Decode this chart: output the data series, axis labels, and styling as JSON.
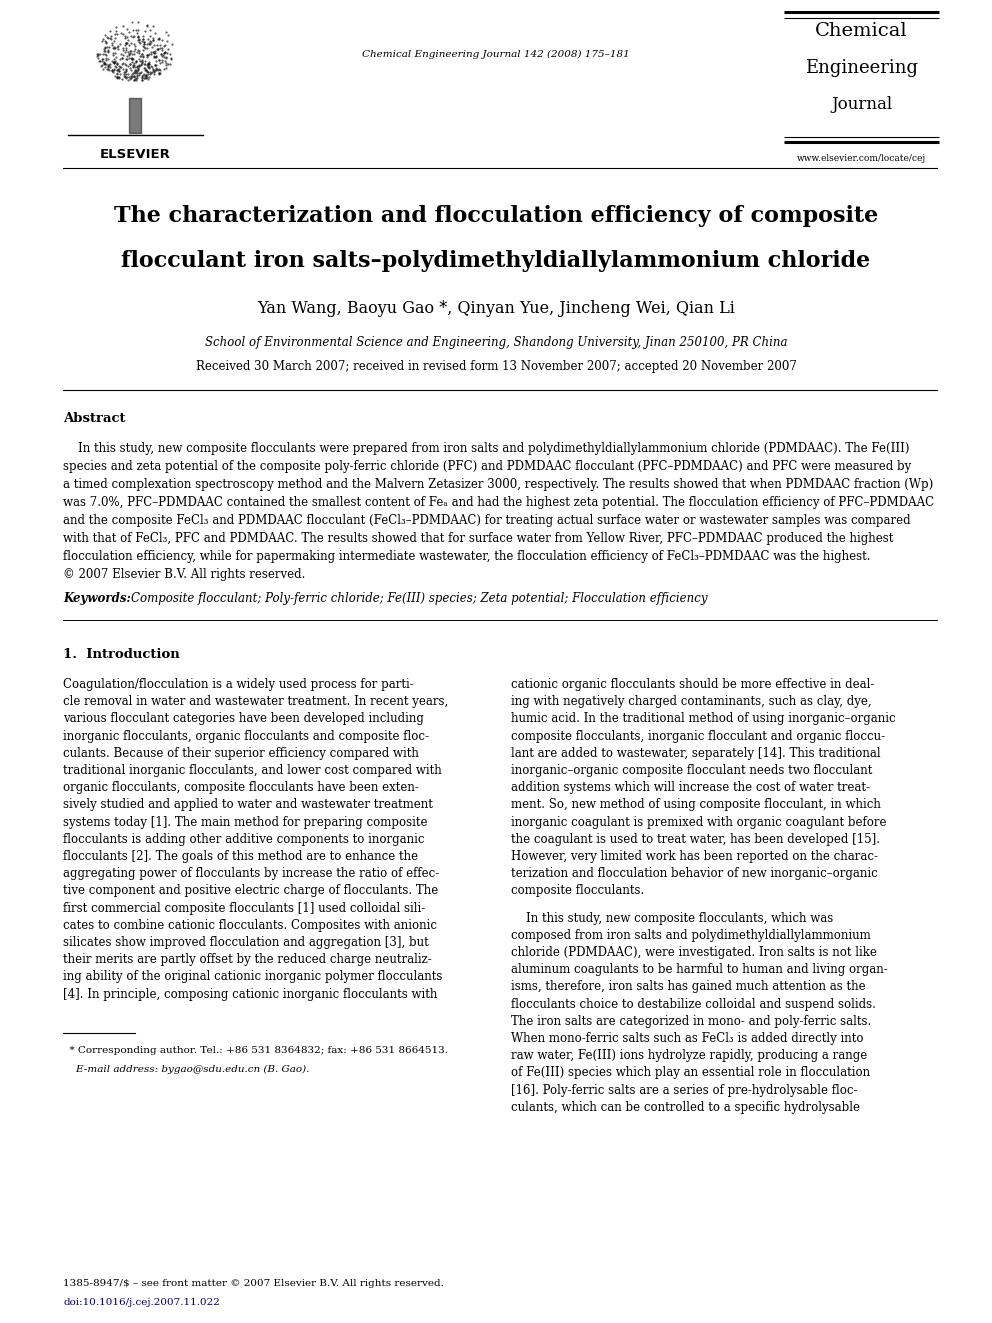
{
  "bg_color": "#ffffff",
  "page_width": 9.92,
  "page_height": 13.23,
  "dpi": 100,
  "journal_name_lines": [
    "Chemical",
    "Engineering",
    "Journal"
  ],
  "journal_url": "www.elsevier.com/locate/cej",
  "journal_ref": "Chemical Engineering Journal 142 (2008) 175–181",
  "title_line1": "The characterization and flocculation efficiency of composite",
  "title_line2": "flocculant iron salts–polydimethyldiallylammonium chloride",
  "authors": "Yan Wang, Baoyu Gao *, Qinyan Yue, Jincheng Wei, Qian Li",
  "affiliation": "School of Environmental Science and Engineering, Shandong University, Jinan 250100, PR China",
  "received": "Received 30 March 2007; received in revised form 13 November 2007; accepted 20 November 2007",
  "abstract_title": "Abstract",
  "abstract_text": "In this study, new composite flocculants were prepared from iron salts and polydimethyldiallylammonium chloride (PDMDAAC). The Fe(III) species and zeta potential of the composite poly-ferric chloride (PFC) and PDMDAAC flocculant (PFC–PDMDAAC) and PFC were measured by a timed complexation spectroscopy method and the Malvern Zetasizer 3000, respectively. The results showed that when PDMDAAC fraction (Wp) was 7.0%, PFC–PDMDAAC contained the smallest content of Feₐ and had the highest zeta potential. The flocculation efficiency of PFC–PDMDAAC and the composite FeCl₃ and PDMDAAC flocculant (FeCl₃–PDMDAAC) for treating actual surface water or wastewater samples was compared with that of FeCl₃, PFC and PDMDAAC. The results showed that for surface water from Yellow River, PFC–PDMDAAC produced the highest flocculation efficiency, while for papermaking intermediate wastewater, the flocculation efficiency of FeCl₃–PDMDAAC was the highest.\n© 2007 Elsevier B.V. All rights reserved.",
  "keywords_label": "Keywords:",
  "keywords_text": "  Composite flocculant; Poly-ferric chloride; Fe(III) species; Zeta potential; Flocculation efficiency",
  "section1_title": "1.  Introduction",
  "intro_col1_para1": "Coagulation/flocculation is a widely used process for parti-\ncle removal in water and wastewater treatment. In recent years,\nvarious flocculant categories have been developed including\ninorganic flocculants, organic flocculants and composite floc-\nculants. Because of their superior efficiency compared with\ntraditional inorganic flocculants, and lower cost compared with\norganic flocculants, composite flocculants have been exten-\nsively studied and applied to water and wastewater treatment\nsystems today [1]. The main method for preparing composite\nflocculants is adding other additive components to inorganic\nflocculants [2]. The goals of this method are to enhance the\naggregating power of flocculants by increase the ratio of effec-\ntive component and positive electric charge of flocculants. The\nfirst commercial composite flocculants [1] used colloidal sili-\ncates to combine cationic flocculants. Composites with anionic\nsilicates show improved flocculation and aggregation [3], but\ntheir merits are partly offset by the reduced charge neutraliz-\ning ability of the original cationic inorganic polymer flocculants\n[4]. In principle, composing cationic inorganic flocculants with",
  "intro_col2_para1": "cationic organic flocculants should be more effective in deal-\ning with negatively charged contaminants, such as clay, dye,\nhumic acid. In the traditional method of using inorganic–organic\ncomposite flocculants, inorganic flocculant and organic floccu-\nlant are added to wastewater, separately [14]. This traditional\ninorganic–organic composite flocculant needs two flocculant\naddition systems which will increase the cost of water treat-\nment. So, new method of using composite flocculant, in which\ninorganic coagulant is premixed with organic coagulant before\nthe coagulant is used to treat water, has been developed [15].\nHowever, very limited work has been reported on the charac-\nterization and flocculation behavior of new inorganic–organic\ncomposite flocculants.",
  "intro_col2_para2": "    In this study, new composite flocculants, which was\ncomposed from iron salts and polydimethyldiallylammonium\nchloride (PDMDAAC), were investigated. Iron salts is not like\naluminum coagulants to be harmful to human and living organ-\nisms, therefore, iron salts has gained much attention as the\nflocculants choice to destabilize colloidal and suspend solids.\nThe iron salts are categorized in mono- and poly-ferric salts.\nWhen mono-ferric salts such as FeCl₃ is added directly into\nraw water, Fe(III) ions hydrolyze rapidly, producing a range\nof Fe(III) species which play an essential role in flocculation\n[16]. Poly-ferric salts are a series of pre-hydrolysable floc-\nculants, which can be controlled to a specific hydrolysable",
  "footnote_star": "  * Corresponding author. Tel.: +86 531 8364832; fax: +86 531 8664513.",
  "footnote_email": "    E-mail address: bygao@sdu.edu.cn (B. Gao).",
  "footer_issn": "1385-8947/$ – see front matter © 2007 Elsevier B.V. All rights reserved.",
  "footer_doi": "doi:10.1016/j.cej.2007.11.022"
}
